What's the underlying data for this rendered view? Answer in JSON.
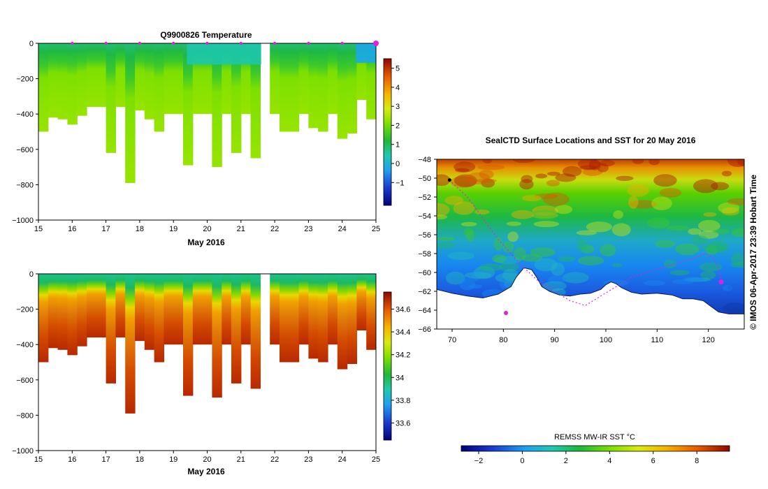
{
  "chart_data": [
    {
      "id": "temperature",
      "type": "heatmap",
      "title": "Q9900826  Temperature",
      "xlabel": "May 2016",
      "ylabel": "",
      "xlim": [
        15,
        25
      ],
      "ylim": [
        -1000,
        0
      ],
      "xticks": [
        15,
        16,
        17,
        18,
        19,
        20,
        21,
        22,
        23,
        24,
        25
      ],
      "yticks": [
        0,
        -200,
        -400,
        -600,
        -800,
        -1000
      ],
      "ytick_labels": [
        "0",
        "−200",
        "−400",
        "−600",
        "−800",
        "−1000"
      ],
      "colorbar": {
        "vmin": -2.2,
        "vmax": 5.5,
        "ticks": [
          -1,
          0,
          1,
          2,
          3,
          4,
          5
        ],
        "tick_labels": [
          "−1",
          "0",
          "1",
          "2",
          "3",
          "4",
          "5"
        ]
      },
      "surface_markers": [
        16,
        17,
        18,
        19,
        20,
        21,
        22,
        23,
        24,
        25
      ],
      "profiles_max_depth_m": [
        500,
        420,
        430,
        460,
        410,
        360,
        360,
        620,
        360,
        790,
        380,
        430,
        500,
        400,
        400,
        690,
        400,
        400,
        700,
        400,
        620,
        400,
        650,
        500,
        400,
        500,
        500,
        400,
        480,
        500,
        400,
        540,
        510,
        320,
        430
      ]
    },
    {
      "id": "salinity",
      "type": "heatmap",
      "title": "",
      "xlabel": "May 2016",
      "ylabel": "",
      "xlim": [
        15,
        25
      ],
      "ylim": [
        -1000,
        0
      ],
      "xticks": [
        15,
        16,
        17,
        18,
        19,
        20,
        21,
        22,
        23,
        24,
        25
      ],
      "yticks": [
        0,
        -200,
        -400,
        -600,
        -800,
        -1000
      ],
      "ytick_labels": [
        "0",
        "−200",
        "−400",
        "−600",
        "−800",
        "−1000"
      ],
      "colorbar": {
        "vmin": 33.45,
        "vmax": 34.75,
        "ticks": [
          33.6,
          33.8,
          34,
          34.2,
          34.4,
          34.6
        ],
        "tick_labels": [
          "33.6",
          "33.8",
          "34",
          "34.2",
          "34.4",
          "34.6"
        ]
      }
    },
    {
      "id": "sst_map",
      "type": "heatmap",
      "title": "SealCTD Surface Locations and SST for 20 May 2016",
      "xlabel": "",
      "ylabel": "",
      "xlim": [
        67,
        127
      ],
      "ylim": [
        -66,
        -48
      ],
      "xticks": [
        70,
        80,
        90,
        100,
        110,
        120
      ],
      "yticks": [
        -48,
        -50,
        -52,
        -54,
        -56,
        -58,
        -60,
        -62,
        -64,
        -66
      ],
      "ytick_labels": [
        "−48",
        "−50",
        "−52",
        "−54",
        "−56",
        "−58",
        "−60",
        "−62",
        "−64",
        "−66"
      ],
      "side_label": "©  IMOS 06-Apr-2017 23:39 Hobart Time",
      "colorbar": {
        "label": "REMSS MW-IR SST °C",
        "vmin": -2.8,
        "vmax": 9.5,
        "ticks": [
          -2,
          0,
          2,
          4,
          6,
          8
        ],
        "tick_labels": [
          "−2",
          "0",
          "2",
          "4",
          "6",
          "8"
        ]
      },
      "track_lon": [
        69.5,
        71,
        73,
        75,
        77,
        79,
        81.5,
        84,
        87,
        90,
        93,
        96,
        99,
        102,
        105,
        108,
        111,
        114,
        117,
        119.5,
        121,
        122,
        122.5
      ],
      "track_lat": [
        -50.2,
        -51,
        -52,
        -53.5,
        -55,
        -56.5,
        -58,
        -59.5,
        -61,
        -62,
        -63,
        -63.5,
        -62.5,
        -61.5,
        -60.5,
        -60,
        -59.5,
        -59,
        -58.5,
        -58,
        -58.5,
        -59.5,
        -61
      ],
      "landmass_edge_lon": [
        67,
        70,
        73,
        76,
        79,
        81.5,
        82.5,
        84,
        85.5,
        86.5,
        87.5,
        89,
        91,
        93,
        95,
        97,
        99,
        100,
        101,
        102,
        103,
        105,
        107,
        110,
        113,
        115,
        117,
        119,
        120.5,
        122,
        124,
        127
      ],
      "landmass_edge_lat": [
        -61.8,
        -62.2,
        -62.5,
        -62.7,
        -62.3,
        -61.5,
        -60.5,
        -59.5,
        -59.7,
        -60.5,
        -61.5,
        -62,
        -62.4,
        -62.5,
        -62.3,
        -62.2,
        -61.8,
        -61.3,
        -61,
        -61.2,
        -61.6,
        -62.1,
        -62.3,
        -62.2,
        -62.4,
        -62.8,
        -62.8,
        -63,
        -63.6,
        -64.2,
        -64.4,
        -64.4
      ]
    }
  ]
}
